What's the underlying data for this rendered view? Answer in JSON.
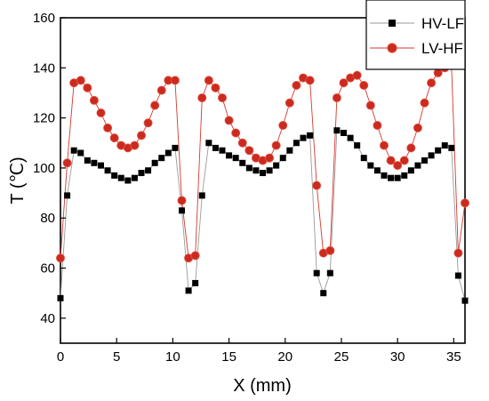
{
  "chart_data": {
    "type": "scatter",
    "xlabel": "X (mm)",
    "ylabel": "T (℃)",
    "xlim": [
      0,
      36
    ],
    "ylim": [
      30,
      160
    ],
    "xticks": [
      0,
      5,
      10,
      15,
      20,
      25,
      30,
      35
    ],
    "yticks": [
      40,
      60,
      80,
      100,
      120,
      140,
      160
    ],
    "grid": false,
    "legend_position": "top-right",
    "series": [
      {
        "name": "HV-LF",
        "marker": "square",
        "color": "#000000",
        "line_color": "#9a9a9a",
        "x": [
          0,
          0.6,
          1.2,
          1.8,
          2.4,
          3.0,
          3.6,
          4.2,
          4.8,
          5.4,
          6.0,
          6.6,
          7.2,
          7.8,
          8.4,
          9.0,
          9.6,
          10.2,
          10.8,
          11.4,
          12.0,
          12.6,
          13.2,
          13.8,
          14.4,
          15.0,
          15.6,
          16.2,
          16.8,
          17.4,
          18.0,
          18.6,
          19.2,
          19.8,
          20.4,
          21.0,
          21.6,
          22.2,
          22.8,
          23.4,
          24.0,
          24.6,
          25.2,
          25.8,
          26.4,
          27.0,
          27.6,
          28.2,
          28.8,
          29.4,
          30.0,
          30.6,
          31.2,
          31.8,
          32.4,
          33.0,
          33.6,
          34.2,
          34.8,
          35.4,
          36.0
        ],
        "y": [
          48,
          89,
          107,
          106,
          103,
          102,
          101,
          99,
          97,
          96,
          95,
          96,
          98,
          99,
          102,
          104,
          106,
          108,
          83,
          51,
          54,
          89,
          110,
          108,
          107,
          105,
          104,
          102,
          100,
          99,
          98,
          99,
          101,
          104,
          107,
          110,
          112,
          113,
          58,
          50,
          58,
          115,
          114,
          112,
          109,
          104,
          101,
          99,
          97,
          96,
          96,
          97,
          99,
          101,
          103,
          105,
          107,
          109,
          108,
          57,
          47
        ]
      },
      {
        "name": "LV-HF",
        "marker": "circle",
        "color": "#cc2a1e",
        "line_color": "#d23a2e",
        "x": [
          0,
          0.6,
          1.2,
          1.8,
          2.4,
          3.0,
          3.6,
          4.2,
          4.8,
          5.4,
          6.0,
          6.6,
          7.2,
          7.8,
          8.4,
          9.0,
          9.6,
          10.2,
          10.8,
          11.4,
          12.0,
          12.6,
          13.2,
          13.8,
          14.4,
          15.0,
          15.6,
          16.2,
          16.8,
          17.4,
          18.0,
          18.6,
          19.2,
          19.8,
          20.4,
          21.0,
          21.6,
          22.2,
          22.8,
          23.4,
          24.0,
          24.6,
          25.2,
          25.8,
          26.4,
          27.0,
          27.6,
          28.2,
          28.8,
          29.4,
          30.0,
          30.6,
          31.2,
          31.8,
          32.4,
          33.0,
          33.6,
          34.2,
          34.8,
          35.4,
          36.0
        ],
        "y": [
          64,
          102,
          134,
          135,
          132,
          127,
          122,
          116,
          112,
          109,
          108,
          109,
          113,
          118,
          125,
          131,
          135,
          135,
          87,
          64,
          65,
          128,
          135,
          132,
          128,
          119,
          114,
          110,
          107,
          104,
          103,
          104,
          109,
          117,
          126,
          133,
          136,
          135,
          93,
          66,
          67,
          128,
          134,
          136,
          137,
          133,
          125,
          117,
          109,
          103,
          101,
          103,
          108,
          116,
          126,
          134,
          138,
          140,
          141,
          66,
          86
        ]
      }
    ]
  }
}
